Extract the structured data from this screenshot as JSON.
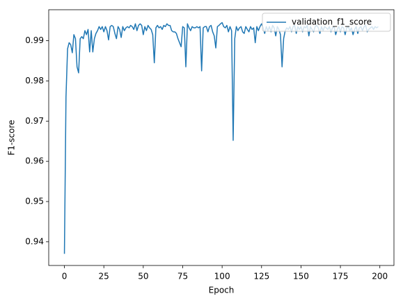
{
  "chart_data": {
    "type": "line",
    "xlabel": "Epoch",
    "ylabel": "F1-score",
    "x": [
      0,
      1,
      2,
      3,
      4,
      5,
      6,
      7,
      8,
      9,
      10,
      11,
      12,
      13,
      14,
      15,
      16,
      17,
      18,
      19,
      20,
      21,
      22,
      23,
      24,
      25,
      26,
      27,
      28,
      29,
      30,
      31,
      32,
      33,
      34,
      35,
      36,
      37,
      38,
      39,
      40,
      41,
      42,
      43,
      44,
      45,
      46,
      47,
      48,
      49,
      50,
      51,
      52,
      53,
      54,
      55,
      56,
      57,
      58,
      59,
      60,
      61,
      62,
      63,
      64,
      65,
      66,
      67,
      68,
      69,
      70,
      71,
      72,
      73,
      74,
      75,
      76,
      77,
      78,
      79,
      80,
      81,
      82,
      83,
      84,
      85,
      86,
      87,
      88,
      89,
      90,
      91,
      92,
      93,
      94,
      95,
      96,
      97,
      98,
      99,
      100,
      101,
      102,
      103,
      104,
      105,
      106,
      107,
      108,
      109,
      110,
      111,
      112,
      113,
      114,
      115,
      116,
      117,
      118,
      119,
      120,
      121,
      122,
      123,
      124,
      125,
      126,
      127,
      128,
      129,
      130,
      131,
      132,
      133,
      134,
      135,
      136,
      137,
      138,
      139,
      140,
      141,
      142,
      143,
      144,
      145,
      146,
      147,
      148,
      149,
      150,
      151,
      152,
      153,
      154,
      155,
      156,
      157,
      158,
      159,
      160,
      161,
      162,
      163,
      164,
      165,
      166,
      167,
      168,
      169,
      170,
      171,
      172,
      173,
      174,
      175,
      176,
      177,
      178,
      179,
      180,
      181,
      182,
      183,
      184,
      185,
      186,
      187,
      188,
      189,
      190,
      191,
      192,
      193,
      194,
      195,
      196,
      197,
      198,
      199
    ],
    "series": [
      {
        "name": "validation_f1_score",
        "color": "#1f77b4",
        "values": [
          0.937,
          0.976,
          0.988,
          0.9895,
          0.989,
          0.987,
          0.9915,
          0.9905,
          0.9835,
          0.982,
          0.9905,
          0.991,
          0.9905,
          0.9925,
          0.9915,
          0.9928,
          0.9872,
          0.9925,
          0.9872,
          0.9905,
          0.9918,
          0.9925,
          0.9935,
          0.9928,
          0.9935,
          0.9922,
          0.9935,
          0.9925,
          0.9902,
          0.9935,
          0.9938,
          0.9935,
          0.9918,
          0.9905,
          0.9935,
          0.9928,
          0.9908,
          0.9935,
          0.9925,
          0.9932,
          0.9935,
          0.9932,
          0.9938,
          0.9935,
          0.9928,
          0.9942,
          0.9925,
          0.9938,
          0.9942,
          0.9938,
          0.9915,
          0.9935,
          0.9925,
          0.9938,
          0.9932,
          0.9928,
          0.9915,
          0.9845,
          0.9932,
          0.9938,
          0.9932,
          0.9935,
          0.9928,
          0.9938,
          0.9935,
          0.9942,
          0.9938,
          0.9938,
          0.9925,
          0.9922,
          0.9922,
          0.9918,
          0.9905,
          0.9895,
          0.9885,
          0.9935,
          0.9932,
          0.9835,
          0.9942,
          0.9932,
          0.9925,
          0.9935,
          0.9932,
          0.9932,
          0.9935,
          0.9932,
          0.9935,
          0.9825,
          0.9932,
          0.9935,
          0.9935,
          0.9922,
          0.9935,
          0.9938,
          0.9922,
          0.9912,
          0.9882,
          0.9935,
          0.9938,
          0.9942,
          0.9945,
          0.9935,
          0.9932,
          0.9938,
          0.9922,
          0.9935,
          0.9925,
          0.9652,
          0.9905,
          0.9935,
          0.9925,
          0.9932,
          0.9935,
          0.9922,
          0.9918,
          0.9935,
          0.9928,
          0.9922,
          0.9935,
          0.9928,
          0.9932,
          0.9895,
          0.9935,
          0.9925,
          0.9935,
          0.9942,
          0.9932,
          0.9918,
          0.9935,
          0.9925,
          0.9935,
          0.9922,
          0.9938,
          0.9932,
          0.9912,
          0.9935,
          0.9928,
          0.9915,
          0.9835,
          0.9905,
          0.9925,
          0.9932,
          0.9928,
          0.9935,
          0.9922,
          0.9935,
          0.9938,
          0.9918,
          0.9935,
          0.9928,
          0.9935,
          0.9922,
          0.9935,
          0.9932,
          0.9938,
          0.9912,
          0.9935,
          0.9928,
          0.9922,
          0.9935,
          0.9938,
          0.9932,
          0.9918,
          0.9935,
          0.9925,
          0.9935,
          0.9932,
          0.9928,
          0.9935,
          0.9922,
          0.9932,
          0.9935,
          0.9915,
          0.9928,
          0.9935,
          0.9922,
          0.9935,
          0.9932,
          0.9915,
          0.9932,
          0.9935,
          0.9925,
          0.9932,
          0.9915,
          0.9928,
          0.9935,
          0.9918,
          0.9932,
          0.9935,
          0.9925,
          0.9935,
          0.9938,
          0.9922,
          0.9928,
          0.9932,
          0.9935,
          0.9928,
          0.9935,
          0.9932,
          0.9935
        ]
      }
    ],
    "xlim": [
      -9.95,
      208.95
    ],
    "xticks": [
      0,
      25,
      50,
      75,
      100,
      125,
      150,
      175,
      200
    ],
    "ylim": [
      0.9341,
      0.9977
    ],
    "yticks": [
      0.94,
      0.95,
      0.96,
      0.97,
      0.98,
      0.99
    ],
    "legend": "upper right"
  }
}
